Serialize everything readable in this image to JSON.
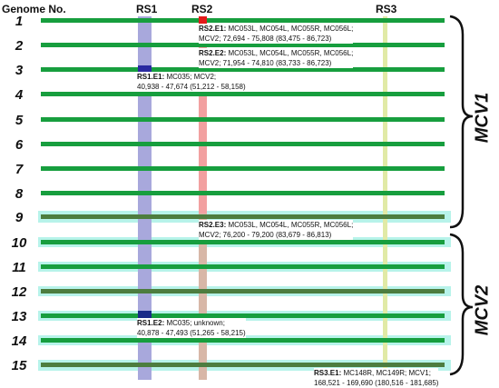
{
  "headers": {
    "genome": "Genome No.",
    "rs1": "RS1",
    "rs2": "RS2",
    "rs3": "RS3"
  },
  "genomes": [
    "1",
    "2",
    "3",
    "4",
    "5",
    "6",
    "7",
    "8",
    "9",
    "10",
    "11",
    "12",
    "13",
    "14",
    "15"
  ],
  "groups": {
    "mcv1": "MCV1",
    "mcv2": "MCV2"
  },
  "labels": {
    "rs2_e1": {
      "id": "RS2.E1:",
      "line1": " MC053L, MC054L, MC055R, MC056L;",
      "line2": "MCV2; 72,694 - 75,808 (83,475 - 86,723)"
    },
    "rs2_e2": {
      "id": "RS2.E2:",
      "line1": " MC053L, MC054L, MC055R, MC056L;",
      "line2": "MCV2; 71,954 - 74,810 (83,733 - 86,723)"
    },
    "rs1_e1": {
      "id": "RS1.E1:",
      "line1": " MC035; MCV2;",
      "line2": "40,938 - 47,674 (51,212 - 58,158)"
    },
    "rs2_e3": {
      "id": "RS2.E3:",
      "line1": " MC053L, MC054L, MC055R, MC056L;",
      "line2": "MCV2; 76,200 - 79,200 (83,679 - 86,813)"
    },
    "rs1_e2": {
      "id": "RS1.E2:",
      "line1": " MC035; unknown;",
      "line2": "40,878 - 47,493 (51,265 - 58,215)"
    },
    "rs3_e1": {
      "id": "RS3.E1:",
      "line1": " MC148R, MC149R; MCV1;",
      "line2": "168,521 - 169,690 (180,516 - 181,685)"
    }
  },
  "colors": {
    "track": "#179e3e",
    "track_variant": "#4d7d3f",
    "rs1": "#a8a8dc",
    "rs2": "#f2a0a0",
    "rs3": "#e1eaa6",
    "highlight": "#b7f3ea"
  }
}
